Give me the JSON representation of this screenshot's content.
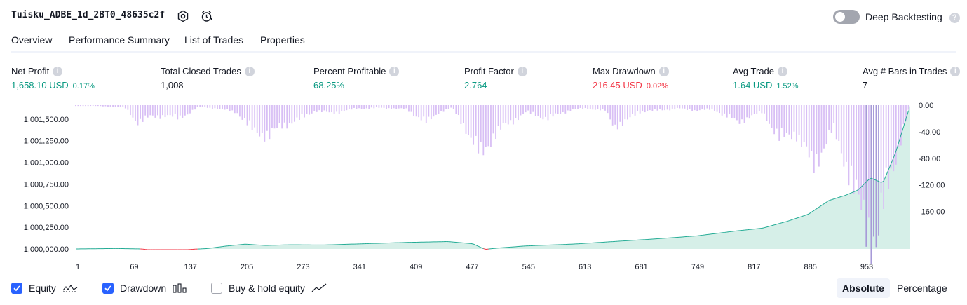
{
  "header": {
    "strategy_name": "Tuisku_ADBE_1d_2BT0_48635c2f",
    "deep_backtesting_label": "Deep Backtesting",
    "deep_backtesting_enabled": false
  },
  "tabs": [
    {
      "label": "Overview",
      "active": true
    },
    {
      "label": "Performance Summary",
      "active": false
    },
    {
      "label": "List of Trades",
      "active": false
    },
    {
      "label": "Properties",
      "active": false
    }
  ],
  "metrics": {
    "net_profit": {
      "label": "Net Profit",
      "value": "1,658.10 USD",
      "pct": "0.17%"
    },
    "total_closed_trades": {
      "label": "Total Closed Trades",
      "value": "1,008"
    },
    "percent_profitable": {
      "label": "Percent Profitable",
      "value": "68.25%"
    },
    "profit_factor": {
      "label": "Profit Factor",
      "value": "2.764"
    },
    "max_drawdown": {
      "label": "Max Drawdown",
      "value": "216.45 USD",
      "pct": "0.02%"
    },
    "avg_trade": {
      "label": "Avg Trade",
      "value": "1.64 USD",
      "pct": "1.52%"
    },
    "avg_bars": {
      "label": "Avg # Bars in Trades",
      "value": "7"
    }
  },
  "colors": {
    "equity_line": "#22ab94",
    "equity_below_line": "#f23645",
    "equity_fill": "#d6efe8",
    "drawdown_bar": "#d8bff5",
    "drawdown_bar_dark": "#a79ad8",
    "positive": "#089981",
    "negative": "#f23645",
    "checkbox": "#2962ff"
  },
  "chart_data": {
    "type": "area",
    "left_axis": {
      "ticks": [
        "1,001,500.00",
        "1,001,250.00",
        "1,001,000.00",
        "1,000,750.00",
        "1,000,500.00",
        "1,000,250.00",
        "1,000,000.00"
      ],
      "range": [
        1000000,
        1001660
      ]
    },
    "right_axis": {
      "ticks": [
        "0.00",
        "-40.00",
        "-80.00",
        "-120.00",
        "-160.00"
      ],
      "range": [
        -216.45,
        0
      ]
    },
    "x_ticks": [
      "1",
      "69",
      "137",
      "205",
      "273",
      "341",
      "409",
      "477",
      "545",
      "613",
      "681",
      "749",
      "817",
      "885",
      "953"
    ],
    "x_range": [
      1,
      1008
    ],
    "series": [
      {
        "name": "Equity",
        "x": [
          1,
          50,
          80,
          95,
          120,
          140,
          160,
          180,
          205,
          230,
          260,
          300,
          350,
          400,
          450,
          480,
          495,
          510,
          545,
          600,
          650,
          700,
          750,
          800,
          830,
          860,
          885,
          910,
          930,
          945,
          960,
          975,
          990,
          1008
        ],
        "y": [
          1000000,
          1000005,
          1000000,
          999985,
          999980,
          999995,
          1000005,
          1000030,
          1000055,
          1000040,
          1000048,
          1000045,
          1000060,
          1000075,
          1000085,
          1000060,
          999995,
          1000010,
          1000035,
          1000055,
          1000085,
          1000115,
          1000150,
          1000210,
          1000240,
          1000320,
          1000400,
          1000560,
          1000620,
          1000680,
          1000820,
          1000760,
          1001100,
          1001660
        ]
      },
      {
        "name": "Drawdown",
        "x": [
          1,
          40,
          60,
          75,
          90,
          110,
          125,
          137,
          150,
          170,
          195,
          215,
          235,
          250,
          270,
          290,
          310,
          340,
          370,
          400,
          425,
          440,
          455,
          470,
          480,
          490,
          505,
          520,
          545,
          570,
          600,
          620,
          640,
          650,
          665,
          680,
          700,
          730,
          750,
          770,
          800,
          830,
          850,
          870,
          890,
          905,
          915,
          935,
          945,
          958,
          968,
          980,
          995,
          1008
        ],
        "y": [
          0,
          -2,
          -3,
          -25,
          -18,
          -15,
          -20,
          -12,
          -2,
          -5,
          -10,
          -38,
          -45,
          -30,
          -22,
          -8,
          -12,
          -5,
          -4,
          -6,
          -26,
          -10,
          -4,
          -30,
          -55,
          -75,
          -45,
          -30,
          -10,
          -20,
          -6,
          -5,
          -8,
          -30,
          -25,
          -10,
          -8,
          -5,
          -8,
          -6,
          -25,
          -10,
          -50,
          -40,
          -90,
          -60,
          -35,
          -100,
          -150,
          -180,
          -210,
          -120,
          -60,
          0
        ]
      }
    ],
    "legend": [
      {
        "label": "Equity",
        "checked": true
      },
      {
        "label": "Drawdown",
        "checked": true
      },
      {
        "label": "Buy & hold equity",
        "checked": false
      }
    ],
    "scale_modes": [
      {
        "label": "Absolute",
        "active": true
      },
      {
        "label": "Percentage",
        "active": false
      }
    ]
  }
}
